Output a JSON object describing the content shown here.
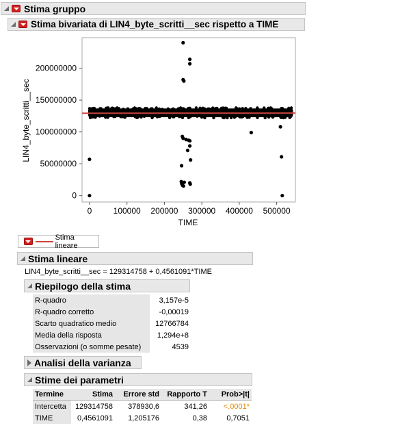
{
  "outline": {
    "group_title": "Stima gruppo",
    "bivariate_title": "Stima bivariata di LIN4_byte_scritti__sec rispetto a TIME"
  },
  "chart_data": {
    "type": "scatter",
    "xlabel": "TIME",
    "ylabel": "LIN4_byte_scritti__sec",
    "xlim": [
      -20000,
      550000
    ],
    "ylim": [
      -10000000,
      248000000
    ],
    "x_ticks": [
      0,
      100000,
      200000,
      300000,
      400000,
      500000
    ],
    "x_tick_labels": [
      "0",
      "100000",
      "200000",
      "300000",
      "400000",
      "500000"
    ],
    "y_ticks": [
      0,
      50000000,
      100000000,
      150000000,
      200000000
    ],
    "y_tick_labels": [
      "0",
      "50000000",
      "100000000",
      "150000000",
      "200000000"
    ],
    "band": {
      "x_start": 0,
      "x_end": 540000,
      "y_low": 121000000,
      "y_high": 139000000
    },
    "fit_line": {
      "intercept": 129314758,
      "slope": 0.4561091,
      "color": "#c9443c"
    },
    "marker_color": "#000000",
    "outliers": [
      [
        0,
        57000000
      ],
      [
        0,
        0
      ],
      [
        250000,
        240000000
      ],
      [
        250000,
        182000000
      ],
      [
        252000,
        180000000
      ],
      [
        268000,
        214000000
      ],
      [
        268000,
        207000000
      ],
      [
        248000,
        93000000
      ],
      [
        250000,
        90000000
      ],
      [
        246000,
        47000000
      ],
      [
        258000,
        88000000
      ],
      [
        265000,
        87000000
      ],
      [
        268000,
        86000000
      ],
      [
        268000,
        78000000
      ],
      [
        262000,
        71000000
      ],
      [
        270000,
        56000000
      ],
      [
        245000,
        22000000
      ],
      [
        246000,
        20000000
      ],
      [
        247000,
        18000000
      ],
      [
        249000,
        16000000
      ],
      [
        251000,
        15000000
      ],
      [
        253000,
        21000000
      ],
      [
        268000,
        20000000
      ],
      [
        269000,
        18000000
      ],
      [
        432000,
        99000000
      ],
      [
        510000,
        108000000
      ],
      [
        513000,
        61000000
      ],
      [
        515000,
        0
      ]
    ]
  },
  "legend": {
    "label": "Stima lineare"
  },
  "linear_fit": {
    "title": "Stima lineare",
    "equation": "LIN4_byte_scritti__sec = 129314758 + 0,4561091*TIME"
  },
  "summary": {
    "title": "Riepilogo della stima",
    "rows": [
      {
        "label": "R-quadro",
        "value": "3,157e-5"
      },
      {
        "label": "R-quadro corretto",
        "value": "-0,00019"
      },
      {
        "label": "Scarto quadratico medio",
        "value": "12766784"
      },
      {
        "label": "Media della risposta",
        "value": "1,294e+8"
      },
      {
        "label": "Osservazioni (o somme pesate)",
        "value": "4539"
      }
    ]
  },
  "anova": {
    "title": "Analisi della varianza"
  },
  "params": {
    "title": "Stime dei parametri",
    "headers": [
      "Termine",
      "Stima",
      "Errore std",
      "Rapporto T",
      "Prob>|t|"
    ],
    "rows": [
      {
        "term": "Intercetta",
        "estimate": "129314758",
        "std_err": "378930,6",
        "t_ratio": "341,26",
        "prob": "<,0001*",
        "highlight": true
      },
      {
        "term": "TIME",
        "estimate": "0,4561091",
        "std_err": "1,205176",
        "t_ratio": "0,38",
        "prob": "0,7051",
        "highlight": false
      }
    ]
  }
}
